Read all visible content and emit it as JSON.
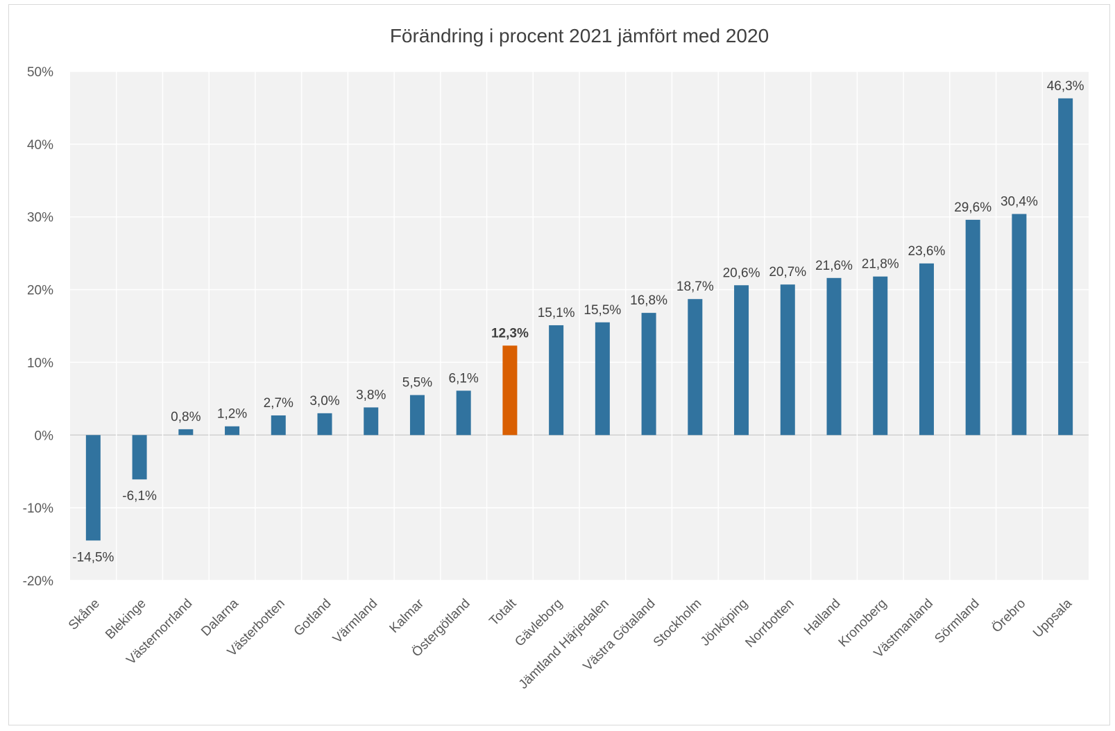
{
  "chart_data": {
    "type": "bar",
    "title": "Förändring i procent 2021 jämfört med 2020",
    "xlabel": "",
    "ylabel": "",
    "ylim": [
      -20,
      50
    ],
    "yticks": [
      "50%",
      "40%",
      "30%",
      "20%",
      "10%",
      "0%",
      "-10%",
      "-20%"
    ],
    "ytick_values": [
      50,
      40,
      30,
      20,
      10,
      0,
      -10,
      -20
    ],
    "grid": true,
    "legend": "none",
    "colors": {
      "default": "#31739f",
      "highlight": "#d95f02",
      "plot_background": "#f2f2f2",
      "grid": "#ffffff"
    },
    "highlight_category": "Totalt",
    "categories": [
      "Skåne",
      "Blekinge",
      "Västernorrland",
      "Dalarna",
      "Västerbotten",
      "Gotland",
      "Värmland",
      "Kalmar",
      "Östergötland",
      "Totalt",
      "Gävleborg",
      "Jämtland Härjedalen",
      "Västra Götaland",
      "Stockholm",
      "Jönköping",
      "Norrbotten",
      "Halland",
      "Kronoberg",
      "Västmanland",
      "Sörmland",
      "Örebro",
      "Uppsala"
    ],
    "values": [
      -14.5,
      -6.1,
      0.8,
      1.2,
      2.7,
      3.0,
      3.8,
      5.5,
      6.1,
      12.3,
      15.1,
      15.5,
      16.8,
      18.7,
      20.6,
      20.7,
      21.6,
      21.8,
      23.6,
      29.6,
      30.4,
      46.3
    ],
    "data_labels": [
      "-14,5%",
      "-6,1%",
      "0,8%",
      "1,2%",
      "2,7%",
      "3,0%",
      "3,8%",
      "5,5%",
      "6,1%",
      "12,3%",
      "15,1%",
      "15,5%",
      "16,8%",
      "18,7%",
      "20,6%",
      "20,7%",
      "21,6%",
      "21,8%",
      "23,6%",
      "29,6%",
      "30,4%",
      "46,3%"
    ]
  }
}
